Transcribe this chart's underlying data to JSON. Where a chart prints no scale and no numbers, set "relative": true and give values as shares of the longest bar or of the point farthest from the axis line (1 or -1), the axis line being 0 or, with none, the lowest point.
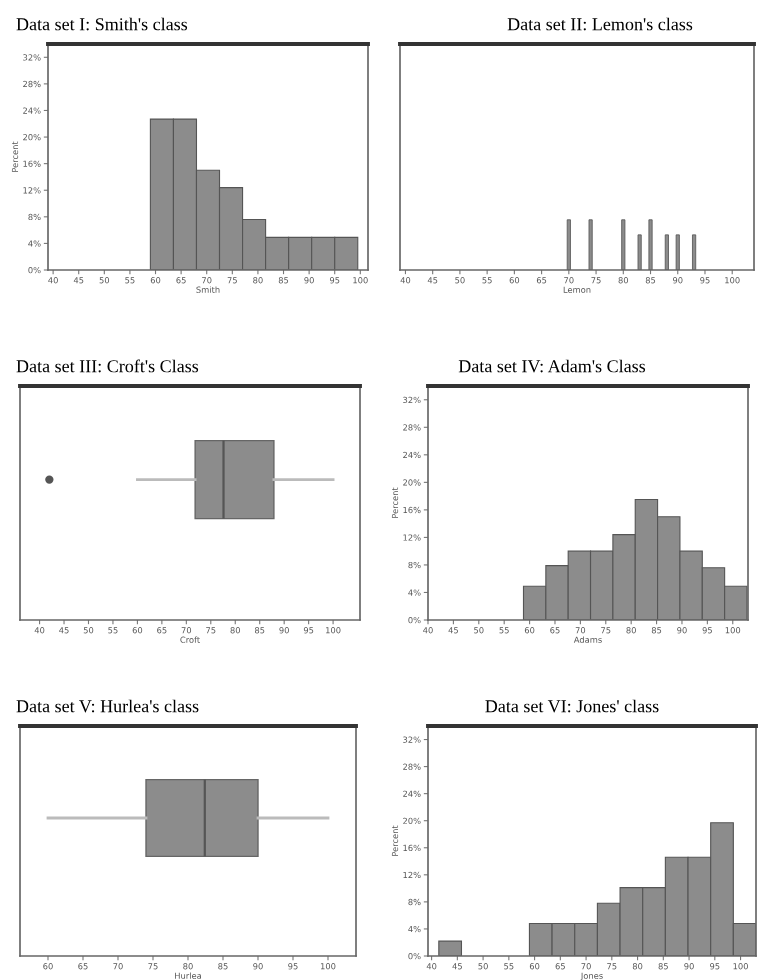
{
  "chart_data": [
    {
      "type": "histogram",
      "title": "Data set I: Smith's class",
      "xlabel": "Smith",
      "ylabel": "Percent",
      "color": "#8c8c8c",
      "bins": [
        59,
        63.5,
        68,
        72.5,
        77,
        81.5,
        86,
        90.5,
        95,
        99.5
      ],
      "values": [
        22.7,
        22.7,
        15,
        12.4,
        7.6,
        4.9,
        4.9,
        4.9,
        4.9
      ],
      "xlim": [
        39,
        101.5
      ],
      "ylim": [
        0,
        34
      ],
      "xticks": [
        40,
        45,
        50,
        55,
        60,
        65,
        70,
        75,
        80,
        85,
        90,
        95,
        100
      ],
      "yticks": [
        {
          "value": 0,
          "label": "0%"
        },
        {
          "value": 4,
          "label": "4%"
        },
        {
          "value": 8,
          "label": "8%"
        },
        {
          "value": 12,
          "label": "12%"
        },
        {
          "value": 16,
          "label": "16%"
        },
        {
          "value": 20,
          "label": "20%"
        },
        {
          "value": 24,
          "label": "24%"
        },
        {
          "value": 28,
          "label": "28%"
        },
        {
          "value": 32,
          "label": "32%"
        }
      ]
    },
    {
      "type": "bar",
      "title": "Data set II: Lemon's class",
      "xlabel": "Lemon",
      "relative": true,
      "color": "#8c8c8c",
      "x": [
        70,
        74,
        80,
        83,
        85,
        88,
        90,
        93
      ],
      "values": [
        1,
        1,
        1,
        0.7,
        1,
        0.7,
        0.7,
        0.7
      ],
      "xlim": [
        39,
        104
      ],
      "xticks": [
        40,
        45,
        50,
        55,
        60,
        65,
        70,
        75,
        80,
        85,
        90,
        95,
        100
      ]
    },
    {
      "type": "box",
      "title": "Data set III: Croft's Class",
      "xlabel": "Croft",
      "orientation": "horizontal",
      "color": "#8c8c8c",
      "categories": [
        null
      ],
      "boxes": [
        {
          "low": 60,
          "q1": 71.8,
          "median": 77.6,
          "q3": 87.9,
          "high": 100,
          "outliers": [
            42
          ]
        }
      ],
      "xlim": [
        36,
        105.5
      ],
      "xticks": [
        40,
        45,
        50,
        55,
        60,
        65,
        70,
        75,
        80,
        85,
        90,
        95,
        100
      ]
    },
    {
      "type": "histogram",
      "title": "Data set IV: Adam's Class",
      "xlabel": "Adams",
      "ylabel": "Percent",
      "color": "#8c8c8c",
      "bins": [
        58.8,
        63.2,
        67.6,
        72,
        76.4,
        80.8,
        85.2,
        89.6,
        94,
        98.4,
        102.8
      ],
      "values": [
        4.9,
        7.9,
        10,
        10,
        12.4,
        17.5,
        15,
        10,
        7.6,
        4.9
      ],
      "xlim": [
        40,
        103
      ],
      "ylim": [
        0,
        34
      ],
      "xticks": [
        40,
        45,
        50,
        55,
        60,
        65,
        70,
        75,
        80,
        85,
        90,
        95,
        100
      ],
      "yticks": [
        {
          "value": 0,
          "label": "0%"
        },
        {
          "value": 4,
          "label": "4%"
        },
        {
          "value": 8,
          "label": "8%"
        },
        {
          "value": 12,
          "label": "12%"
        },
        {
          "value": 16,
          "label": "16%"
        },
        {
          "value": 20,
          "label": "20%"
        },
        {
          "value": 24,
          "label": "24%"
        },
        {
          "value": 28,
          "label": "28%"
        },
        {
          "value": 32,
          "label": "32%"
        }
      ]
    },
    {
      "type": "box",
      "title": "Data set V: Hurlea's class",
      "xlabel": "Hurlea",
      "orientation": "horizontal",
      "color": "#8c8c8c",
      "categories": [
        null
      ],
      "boxes": [
        {
          "low": 60,
          "q1": 74,
          "median": 82.4,
          "q3": 90,
          "high": 100
        }
      ],
      "xlim": [
        56,
        104
      ],
      "xticks": [
        60,
        65,
        70,
        75,
        80,
        85,
        90,
        95,
        100
      ]
    },
    {
      "type": "histogram",
      "title": "Data set VI: Jones' class",
      "xlabel": "Jones",
      "ylabel": "Percent",
      "color": "#8c8c8c",
      "bins": [
        41.4,
        45.8,
        50.2,
        54.6,
        59,
        63.4,
        67.8,
        72.2,
        76.6,
        81,
        85.4,
        89.8,
        94.2,
        98.6,
        103
      ],
      "values": [
        2.2,
        0,
        0,
        0,
        4.8,
        4.8,
        4.8,
        7.8,
        10.1,
        10.1,
        14.6,
        14.6,
        19.7,
        4.8
      ],
      "xlim": [
        39.3,
        103
      ],
      "ylim": [
        0,
        34
      ],
      "xticks": [
        40,
        45,
        50,
        55,
        60,
        65,
        70,
        75,
        80,
        85,
        90,
        95,
        100
      ],
      "yticks": [
        {
          "value": 0,
          "label": "0%"
        },
        {
          "value": 4,
          "label": "4%"
        },
        {
          "value": 8,
          "label": "8%"
        },
        {
          "value": 12,
          "label": "12%"
        },
        {
          "value": 16,
          "label": "16%"
        },
        {
          "value": 20,
          "label": "20%"
        },
        {
          "value": 24,
          "label": "24%"
        },
        {
          "value": 28,
          "label": "28%"
        },
        {
          "value": 32,
          "label": "32%"
        }
      ]
    }
  ]
}
